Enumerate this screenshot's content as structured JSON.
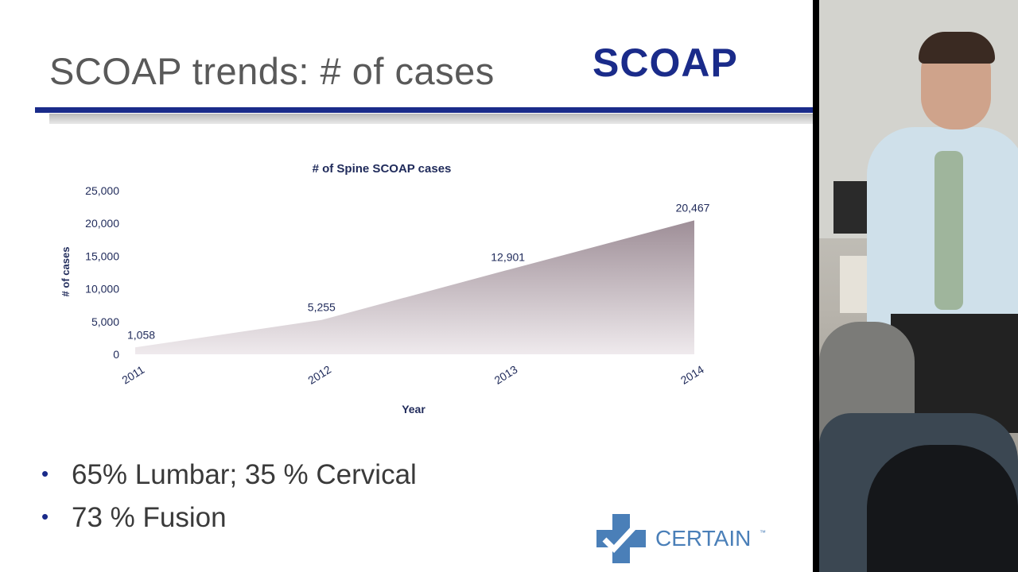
{
  "slide": {
    "title": "SCOAP trends: # of cases",
    "logo_text": "SCOAP",
    "bullets": [
      "65% Lumbar; 35 % Cervical",
      "73 % Fusion"
    ],
    "footer_logo_text": "CERTAIN",
    "footer_logo_mark": "™"
  },
  "colors": {
    "title_rule": "#1a2b8a",
    "logo_navy": "#1a2b8a",
    "area_top": "#9e8e97",
    "area_bottom": "#efeaed",
    "chart_text": "#1f2a5a",
    "certain_blue": "#4a7fb8"
  },
  "chart_data": {
    "type": "area",
    "title": "# of Spine SCOAP cases",
    "xlabel": "Year",
    "ylabel": "# of cases",
    "categories": [
      "2011",
      "2012",
      "2013",
      "2014"
    ],
    "values": [
      1058,
      5255,
      12901,
      20467
    ],
    "value_labels": [
      "1,058",
      "5,255",
      "12,901",
      "20,467"
    ],
    "yticks": [
      0,
      5000,
      10000,
      15000,
      20000,
      25000
    ],
    "ytick_labels": [
      "0",
      "5,000",
      "10,000",
      "15,000",
      "20,000",
      "25,000"
    ],
    "ylim": [
      0,
      25000
    ],
    "grid": false,
    "legend": "none"
  }
}
